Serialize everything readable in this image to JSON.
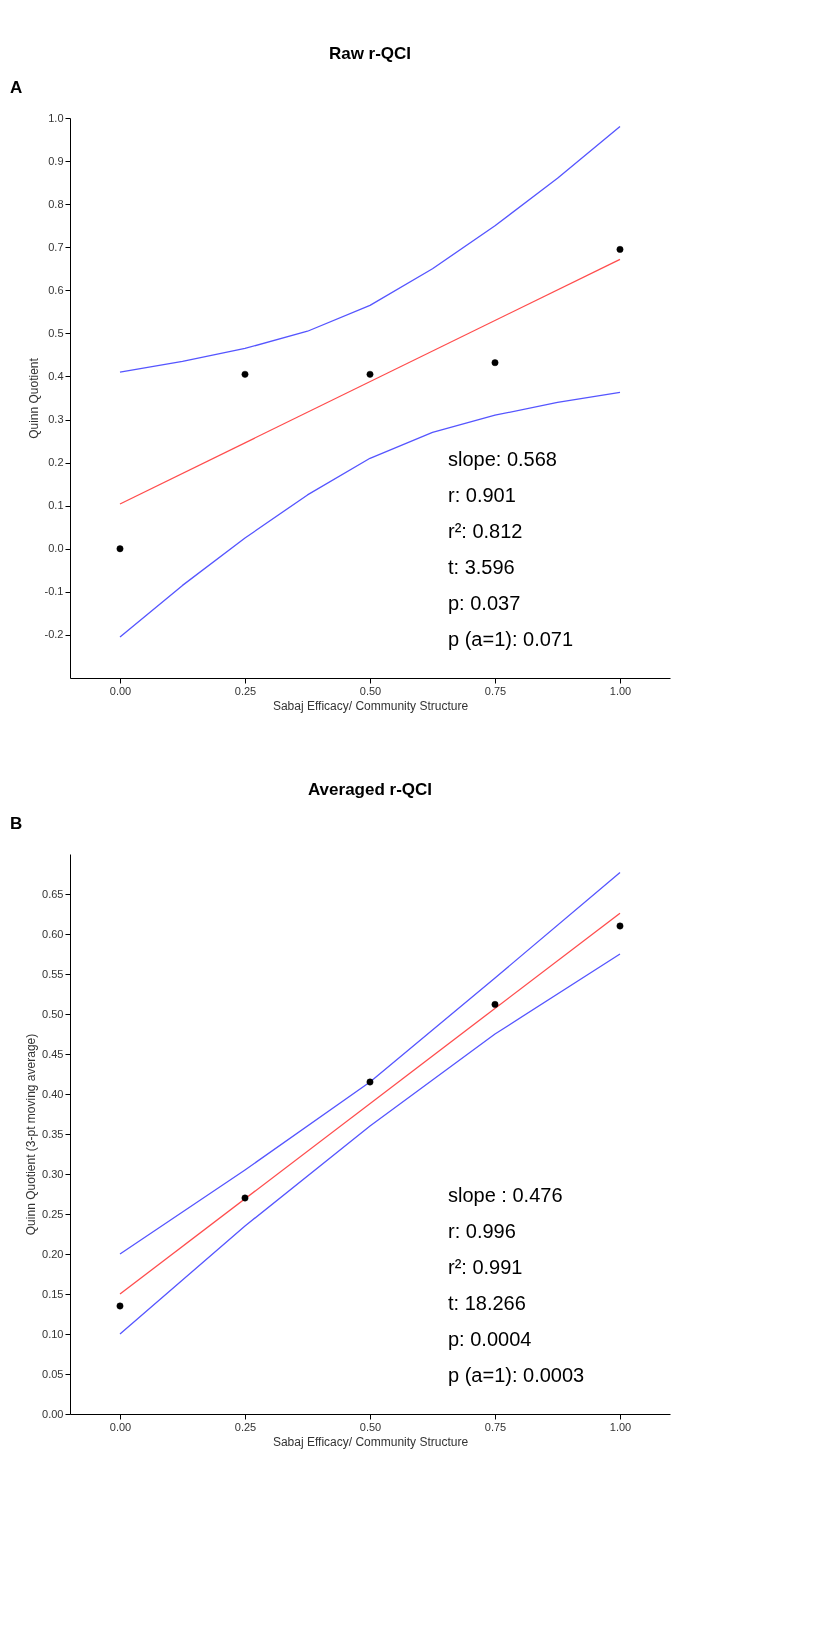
{
  "chart_data": [
    {
      "type": "scatter",
      "title": "Raw r-QCI",
      "xlabel": "Sabaj Efficacy/ Community Structure",
      "ylabel": "Quinn Quotient",
      "xlim": [
        -0.1,
        1.1
      ],
      "xticks": [
        {
          "value": 0,
          "label": "0.00"
        },
        {
          "value": 0.25,
          "label": "0.25"
        },
        {
          "value": 0.5,
          "label": "0.50"
        },
        {
          "value": 0.75,
          "label": "0.75"
        },
        {
          "value": 1,
          "label": "1.00"
        }
      ],
      "ylim": [
        -0.3,
        1.0
      ],
      "yticks": [
        {
          "value": -0.2,
          "label": "-0.2"
        },
        {
          "value": -0.1,
          "label": "-0.1"
        },
        {
          "value": 0,
          "label": "0.0"
        },
        0.1,
        0.2,
        0.3,
        0.4,
        0.5,
        0.6,
        0.7,
        0.8,
        0.9,
        {
          "value": 1,
          "label": "1.0"
        }
      ],
      "grid": false,
      "series": [
        {
          "type": "line",
          "marker": "none",
          "color": "#5555ff",
          "x": [
            0,
            0.125,
            0.25,
            0.375,
            0.5,
            0.625,
            0.75,
            0.875,
            1
          ],
          "values": [
            0.41,
            0.435,
            0.465,
            0.505,
            0.565,
            0.65,
            0.75,
            0.86,
            0.98
          ]
        },
        {
          "type": "line",
          "marker": "none",
          "color": "#5555ff",
          "x": [
            0,
            0.125,
            0.25,
            0.375,
            0.5,
            0.625,
            0.75,
            0.875,
            1
          ],
          "values": [
            -0.205,
            -0.085,
            0.025,
            0.125,
            0.21,
            0.27,
            0.31,
            0.34,
            0.363
          ]
        },
        {
          "type": "line",
          "marker": "none",
          "color": "#ff4d4d",
          "x": [
            0,
            1
          ],
          "values": [
            0.104,
            0.672
          ]
        },
        {
          "type": "scatter",
          "marker": "circle",
          "color": "#000000",
          "x": [
            0,
            0.25,
            0.5,
            0.75,
            1
          ],
          "values": [
            0,
            0.405,
            0.405,
            0.432,
            0.695
          ]
        }
      ],
      "annotations": [
        "A",
        "slope:    0.568",
        "r:            0.901",
        "r²:          0.812",
        "t:            3.596",
        "p:            0.037",
        "p (a=1): 0.071"
      ]
    },
    {
      "type": "scatter",
      "title": "Averaged r-QCI",
      "xlabel": "Sabaj Efficacy/ Community Structure",
      "ylabel": "Quinn Quotient (3-pt moving average)",
      "xlim": [
        -0.1,
        1.1
      ],
      "xticks": [
        {
          "value": 0,
          "label": "0.00"
        },
        {
          "value": 0.25,
          "label": "0.25"
        },
        {
          "value": 0.5,
          "label": "0.50"
        },
        {
          "value": 0.75,
          "label": "0.75"
        },
        {
          "value": 1,
          "label": "1.00"
        }
      ],
      "ylim": [
        0,
        0.7
      ],
      "yticks": [
        {
          "value": 0,
          "label": "0.00"
        },
        0.05,
        {
          "value": 0.1,
          "label": "0.10"
        },
        0.15,
        {
          "value": 0.2,
          "label": "0.20"
        },
        0.25,
        {
          "value": 0.3,
          "label": "0.30"
        },
        0.35,
        {
          "value": 0.4,
          "label": "0.40"
        },
        0.45,
        {
          "value": 0.5,
          "label": "0.50"
        },
        0.55,
        {
          "value": 0.6,
          "label": "0.60"
        },
        0.65
      ],
      "grid": false,
      "series": [
        {
          "type": "line",
          "marker": "none",
          "color": "#5555ff",
          "x": [
            0,
            0.25,
            0.5,
            0.75,
            1
          ],
          "values": [
            0.2,
            0.305,
            0.415,
            0.545,
            0.677
          ]
        },
        {
          "type": "line",
          "marker": "none",
          "color": "#5555ff",
          "x": [
            0,
            0.25,
            0.5,
            0.75,
            1
          ],
          "values": [
            0.1,
            0.235,
            0.36,
            0.475,
            0.575
          ]
        },
        {
          "type": "line",
          "marker": "none",
          "color": "#ff4d4d",
          "x": [
            0,
            1
          ],
          "values": [
            0.15,
            0.626
          ]
        },
        {
          "type": "scatter",
          "marker": "circle",
          "color": "#000000",
          "x": [
            0,
            0.25,
            0.5,
            0.75,
            1
          ],
          "values": [
            0.135,
            0.27,
            0.415,
            0.512,
            0.61
          ]
        }
      ],
      "annotations": [
        "B",
        "slope :  0.476",
        "r:            0.996",
        "r²:          0.991",
        "t:            18.266",
        "p:            0.0004",
        "p (a=1): 0.0003"
      ]
    }
  ]
}
